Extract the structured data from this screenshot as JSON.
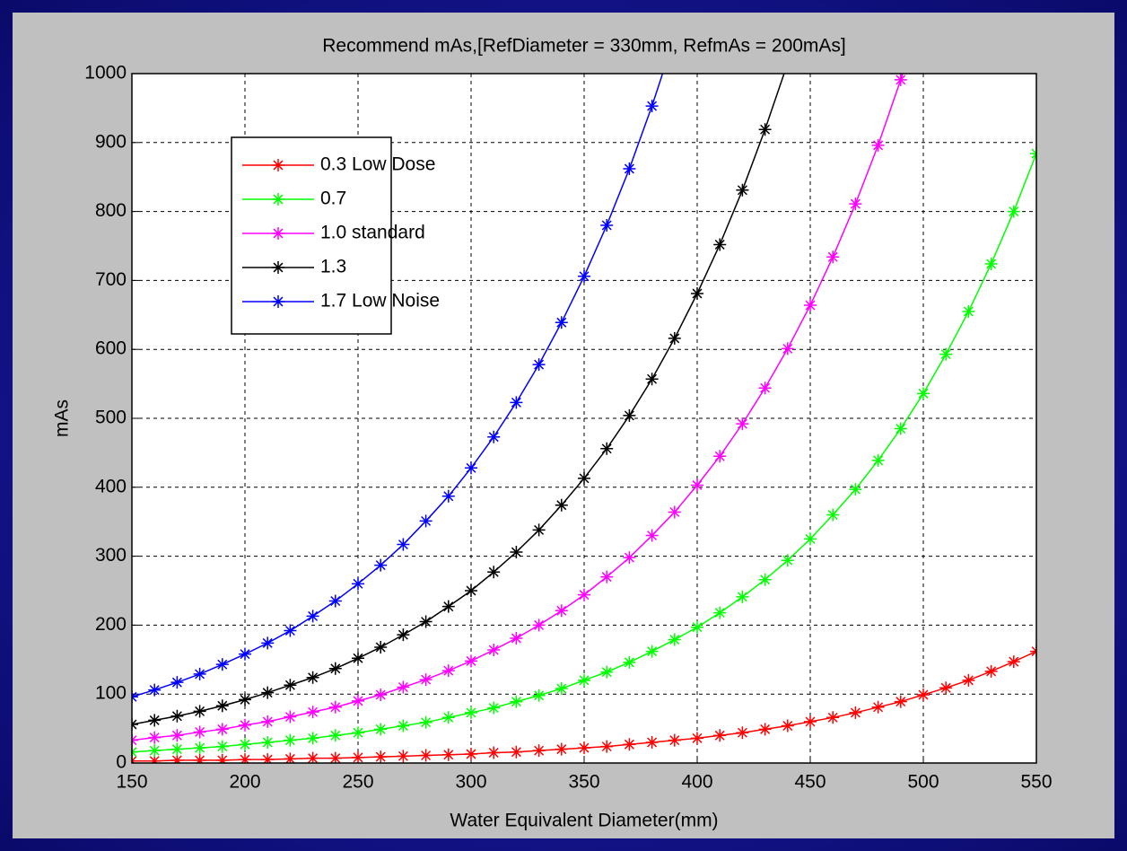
{
  "chart_data": {
    "type": "line",
    "title": "Recommend mAs,[RefDiameter = 330mm, RefmAs = 200mAs]",
    "x_label": "Water Equivalent Diameter(mm)",
    "y_label": "mAs",
    "x": [
      150,
      160,
      170,
      180,
      190,
      200,
      210,
      220,
      230,
      240,
      250,
      260,
      270,
      280,
      290,
      300,
      310,
      320,
      330,
      340,
      350,
      360,
      370,
      380,
      390,
      400,
      410,
      420,
      430,
      440,
      450,
      460,
      470,
      480,
      490,
      500,
      510,
      520,
      530,
      540,
      550
    ],
    "series": [
      {
        "name": "0.3 Low Dose",
        "color": "#ff0000",
        "values": [
          3,
          3,
          4,
          4,
          4,
          5,
          5,
          6,
          7,
          7,
          8,
          9,
          10,
          11,
          12,
          13,
          15,
          16,
          18,
          20,
          22,
          24,
          27,
          30,
          33,
          36,
          40,
          44,
          49,
          54,
          60,
          66,
          73,
          81,
          89,
          99,
          109,
          120,
          133,
          147,
          162
        ]
      },
      {
        "name": "0.7",
        "color": "#00ff00",
        "values": [
          16,
          18,
          20,
          22,
          24,
          27,
          30,
          33,
          36,
          40,
          44,
          49,
          54,
          59,
          66,
          73,
          80,
          89,
          98,
          108,
          120,
          132,
          146,
          162,
          179,
          197,
          218,
          241,
          266,
          294,
          325,
          360,
          397,
          439,
          485,
          536,
          593,
          655,
          724,
          800,
          884
        ]
      },
      {
        "name": "1.0 standard",
        "color": "#ff00ff",
        "values": [
          33,
          37,
          40,
          45,
          49,
          55,
          60,
          67,
          74,
          81,
          90,
          99,
          110,
          121,
          134,
          148,
          164,
          181,
          200,
          221,
          244,
          270,
          298,
          330,
          364,
          403,
          445,
          492,
          544,
          601,
          664,
          734,
          811,
          896,
          991,
          1095,
          null,
          null,
          null,
          null,
          null
        ]
      },
      {
        "name": "1.3",
        "color": "#000000",
        "values": [
          56,
          62,
          68,
          75,
          83,
          92,
          102,
          113,
          124,
          137,
          152,
          168,
          186,
          205,
          227,
          250,
          277,
          306,
          338,
          374,
          413,
          456,
          504,
          557,
          616,
          681,
          752,
          831,
          919,
          1015,
          null,
          null,
          null,
          null,
          null,
          null,
          null,
          null,
          null,
          null,
          null
        ]
      },
      {
        "name": "1.7 Low Noise",
        "color": "#0000ff",
        "values": [
          96,
          106,
          117,
          129,
          143,
          158,
          174,
          192,
          213,
          235,
          260,
          287,
          317,
          351,
          387,
          428,
          473,
          523,
          578,
          639,
          706,
          780,
          862,
          953,
          1053,
          null,
          null,
          null,
          null,
          null,
          null,
          null,
          null,
          null,
          null,
          null,
          null,
          null,
          null,
          null,
          null
        ]
      }
    ],
    "xlim": [
      150,
      550
    ],
    "ylim": [
      0,
      1000
    ],
    "xticks": [
      150,
      200,
      250,
      300,
      350,
      400,
      450,
      500,
      550
    ],
    "yticks": [
      0,
      100,
      200,
      300,
      400,
      500,
      600,
      700,
      800,
      900,
      1000
    ],
    "grid": true,
    "legend": "upper left"
  }
}
